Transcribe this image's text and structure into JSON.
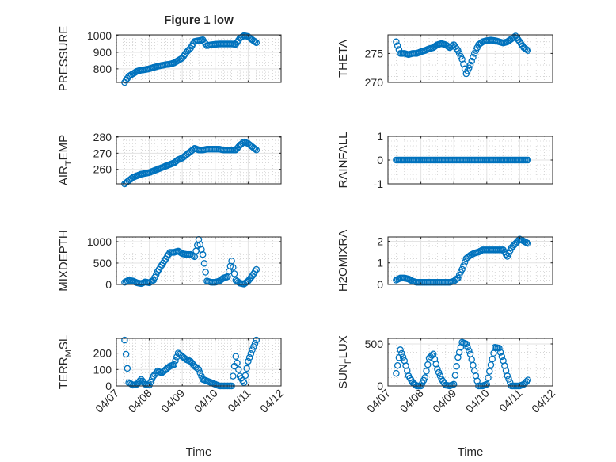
{
  "chart_data": {
    "type": "scatter",
    "title": "Figure 1 low",
    "xlabel": "Time",
    "x_tick_labels": [
      "04/07",
      "04/08",
      "04/09",
      "04/10",
      "04/11",
      "04/12"
    ],
    "xlim_days_since_04_07": [
      0,
      5
    ],
    "grid": "on (major solid, minor dotted)",
    "marker": "open circle",
    "series_color": "#0072BD",
    "x_days_since_04_07": [
      0.25,
      0.375,
      0.5,
      0.625,
      0.75,
      0.875,
      1.0,
      1.125,
      1.25,
      1.375,
      1.5,
      1.625,
      1.75,
      1.875,
      2.0,
      2.125,
      2.25,
      2.375,
      2.5,
      2.625,
      2.75,
      2.875,
      3.0,
      3.125,
      3.25,
      3.375,
      3.5,
      3.625,
      3.75,
      3.875,
      4.0,
      4.125,
      4.25
    ],
    "panels": [
      {
        "ylabel": "PRESSURE",
        "ylim": [
          718,
          1005
        ],
        "yticks": [
          800,
          900,
          1000
        ],
        "ytick_labels": [
          "800",
          "900",
          "1000"
        ],
        "values": [
          718,
          755,
          770,
          785,
          792,
          795,
          800,
          808,
          815,
          820,
          825,
          828,
          835,
          850,
          865,
          900,
          925,
          965,
          970,
          975,
          940,
          945,
          948,
          950,
          950,
          950,
          950,
          948,
          985,
          1000,
          995,
          975,
          958
        ]
      },
      {
        "ylabel": "THETA",
        "ylim": [
          270,
          278.2
        ],
        "yticks": [
          270,
          275
        ],
        "ytick_labels": [
          "270",
          "275"
        ],
        "values": [
          277,
          275,
          275,
          274.8,
          275,
          275,
          275.3,
          275.5,
          275.8,
          276,
          276.5,
          276.7,
          276.5,
          276,
          276.5,
          275.5,
          274,
          271.5,
          273,
          275,
          276.5,
          277,
          277.2,
          277.3,
          277.2,
          277,
          276.8,
          277,
          277.5,
          278,
          277,
          276,
          275.5
        ]
      },
      {
        "ylabel": "AIR_TEMP",
        "ylim": [
          251,
          280.5
        ],
        "yticks": [
          260,
          270,
          280
        ],
        "ytick_labels": [
          "260",
          "270",
          "280"
        ],
        "values": [
          251,
          253,
          255,
          256,
          257,
          257.5,
          258,
          259,
          260,
          261,
          262,
          263,
          264,
          266,
          267,
          269,
          271,
          273,
          272,
          272,
          272.5,
          272.5,
          272.5,
          272.5,
          272,
          272,
          272,
          272,
          275,
          277,
          276,
          274,
          272
        ]
      },
      {
        "ylabel": "RAINFALL",
        "ylim": [
          -1,
          1
        ],
        "yticks": [
          -1,
          0,
          1
        ],
        "ytick_labels": [
          "-1",
          "0",
          "1"
        ],
        "values": [
          0,
          0,
          0,
          0,
          0,
          0,
          0,
          0,
          0,
          0,
          0,
          0,
          0,
          0,
          0,
          0,
          0,
          0,
          0,
          0,
          0,
          0,
          0,
          0,
          0,
          0,
          0,
          0,
          0,
          0,
          0,
          0,
          0
        ]
      },
      {
        "ylabel": "MIXDEPTH",
        "ylim": [
          0,
          1110
        ],
        "yticks": [
          0,
          500,
          1000
        ],
        "ytick_labels": [
          "0",
          "500",
          "1000"
        ],
        "values": [
          50,
          100,
          80,
          40,
          20,
          60,
          40,
          100,
          300,
          450,
          600,
          750,
          750,
          780,
          720,
          700,
          700,
          650,
          1050,
          700,
          80,
          50,
          50,
          80,
          150,
          180,
          550,
          100,
          30,
          10,
          80,
          200,
          350
        ]
      },
      {
        "ylabel": "H2OMIXRA",
        "ylim": [
          0,
          2.2
        ],
        "yticks": [
          0,
          1,
          2
        ],
        "ytick_labels": [
          "0",
          "1",
          "2"
        ],
        "values": [
          0.2,
          0.3,
          0.3,
          0.25,
          0.15,
          0.1,
          0.1,
          0.1,
          0.1,
          0.1,
          0.1,
          0.1,
          0.1,
          0.1,
          0.15,
          0.3,
          0.7,
          1.2,
          1.35,
          1.45,
          1.5,
          1.6,
          1.6,
          1.6,
          1.6,
          1.6,
          1.6,
          1.3,
          1.7,
          1.9,
          2.1,
          2.0,
          1.9
        ]
      },
      {
        "ylabel": "TERR_MSL",
        "ylim": [
          0,
          290
        ],
        "yticks": [
          0,
          100,
          200
        ],
        "ytick_labels": [
          "0",
          "100",
          "200"
        ],
        "values": [
          280,
          20,
          5,
          10,
          40,
          10,
          5,
          60,
          90,
          80,
          100,
          120,
          130,
          200,
          180,
          160,
          150,
          120,
          100,
          40,
          30,
          20,
          10,
          0,
          0,
          0,
          0,
          180,
          60,
          20,
          150,
          220,
          280
        ]
      },
      {
        "ylabel": "SUN_FLUX",
        "ylim": [
          0,
          566
        ],
        "yticks": [
          0,
          500
        ],
        "ytick_labels": [
          "0",
          "500"
        ],
        "values": [
          150,
          430,
          300,
          120,
          40,
          0,
          0,
          100,
          330,
          380,
          200,
          80,
          10,
          0,
          20,
          340,
          520,
          500,
          380,
          180,
          0,
          0,
          20,
          250,
          460,
          450,
          300,
          120,
          0,
          0,
          0,
          20,
          70
        ]
      }
    ]
  }
}
